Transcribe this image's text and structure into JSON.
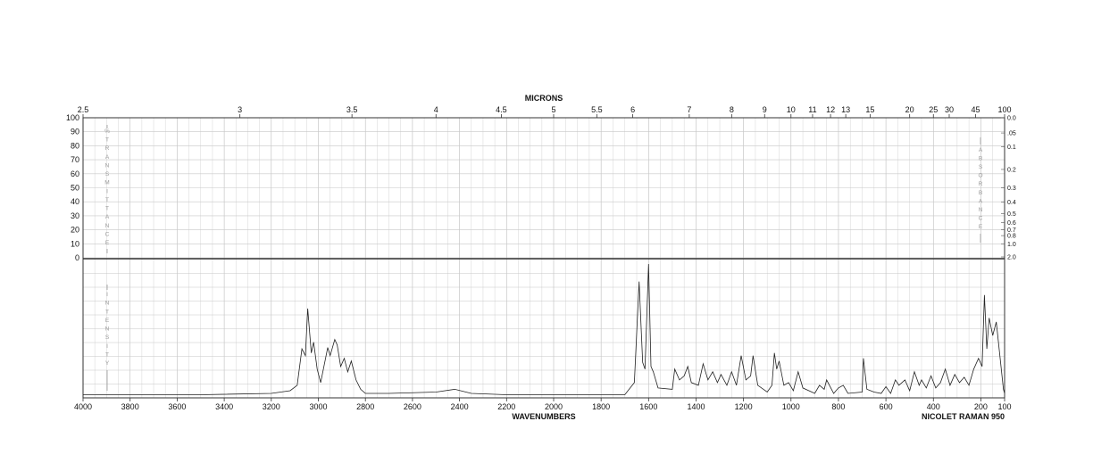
{
  "chart_data": {
    "type": "line",
    "title": "",
    "top_axis_label": "MICRONS",
    "xlabel": "WAVENUMBERS",
    "instrument": "NICOLET RAMAN 950",
    "left_vertical_label_upper": "%TRANSMITTANCE",
    "left_vertical_label_lower": "INTENSITY",
    "right_vertical_label": "ABSORBANCE",
    "xlim": [
      4000,
      100
    ],
    "x_ticks": [
      "4000",
      "3800",
      "3600",
      "3400",
      "3200",
      "3000",
      "2800",
      "2600",
      "2400",
      "2200",
      "2000",
      "1800",
      "1600",
      "1400",
      "1200",
      "1000",
      "800",
      "600",
      "400",
      "200",
      "100"
    ],
    "micron_ticks": [
      "2.5",
      "3",
      "3.5",
      "4",
      "4.5",
      "5",
      "5.5",
      "6",
      "7",
      "8",
      "9",
      "10",
      "11",
      "12",
      "13",
      "15",
      "20",
      "25",
      "30",
      "45",
      "100"
    ],
    "transmittance_ticks": [
      "100",
      "90",
      "80",
      "70",
      "60",
      "50",
      "40",
      "30",
      "20",
      "10",
      "0"
    ],
    "absorbance_ticks": [
      "0.0",
      ".05",
      "0.1",
      "0.2",
      "0.3",
      "0.4",
      "0.5",
      "0.6",
      "0.7",
      "0.8",
      "1.0",
      "2.0"
    ],
    "grid": true,
    "series": [
      {
        "values": [
          [
            4000,
            0.01
          ],
          [
            3500,
            0.01
          ],
          [
            3200,
            0.02
          ],
          [
            3120,
            0.04
          ],
          [
            3090,
            0.08
          ],
          [
            3070,
            0.35
          ],
          [
            3055,
            0.3
          ],
          [
            3045,
            0.65
          ],
          [
            3030,
            0.32
          ],
          [
            3020,
            0.4
          ],
          [
            3005,
            0.2
          ],
          [
            2990,
            0.1
          ],
          [
            2960,
            0.36
          ],
          [
            2950,
            0.3
          ],
          [
            2930,
            0.42
          ],
          [
            2920,
            0.38
          ],
          [
            2905,
            0.22
          ],
          [
            2890,
            0.28
          ],
          [
            2875,
            0.18
          ],
          [
            2860,
            0.26
          ],
          [
            2840,
            0.12
          ],
          [
            2820,
            0.05
          ],
          [
            2800,
            0.02
          ],
          [
            2700,
            0.02
          ],
          [
            2500,
            0.03
          ],
          [
            2420,
            0.05
          ],
          [
            2350,
            0.02
          ],
          [
            2200,
            0.01
          ],
          [
            1900,
            0.01
          ],
          [
            1700,
            0.01
          ],
          [
            1660,
            0.1
          ],
          [
            1640,
            0.85
          ],
          [
            1625,
            0.25
          ],
          [
            1615,
            0.2
          ],
          [
            1600,
            0.98
          ],
          [
            1590,
            0.22
          ],
          [
            1580,
            0.18
          ],
          [
            1560,
            0.06
          ],
          [
            1500,
            0.05
          ],
          [
            1490,
            0.2
          ],
          [
            1470,
            0.12
          ],
          [
            1450,
            0.15
          ],
          [
            1435,
            0.22
          ],
          [
            1420,
            0.1
          ],
          [
            1390,
            0.08
          ],
          [
            1370,
            0.24
          ],
          [
            1350,
            0.12
          ],
          [
            1330,
            0.18
          ],
          [
            1310,
            0.1
          ],
          [
            1295,
            0.16
          ],
          [
            1270,
            0.08
          ],
          [
            1250,
            0.18
          ],
          [
            1230,
            0.08
          ],
          [
            1210,
            0.3
          ],
          [
            1190,
            0.12
          ],
          [
            1170,
            0.15
          ],
          [
            1160,
            0.3
          ],
          [
            1140,
            0.08
          ],
          [
            1100,
            0.03
          ],
          [
            1080,
            0.08
          ],
          [
            1070,
            0.32
          ],
          [
            1060,
            0.2
          ],
          [
            1050,
            0.26
          ],
          [
            1030,
            0.08
          ],
          [
            1010,
            0.1
          ],
          [
            990,
            0.04
          ],
          [
            970,
            0.18
          ],
          [
            950,
            0.06
          ],
          [
            900,
            0.02
          ],
          [
            880,
            0.08
          ],
          [
            860,
            0.05
          ],
          [
            850,
            0.12
          ],
          [
            820,
            0.02
          ],
          [
            800,
            0.06
          ],
          [
            780,
            0.08
          ],
          [
            760,
            0.02
          ],
          [
            700,
            0.03
          ],
          [
            695,
            0.28
          ],
          [
            680,
            0.05
          ],
          [
            650,
            0.03
          ],
          [
            620,
            0.02
          ],
          [
            600,
            0.07
          ],
          [
            580,
            0.02
          ],
          [
            560,
            0.12
          ],
          [
            545,
            0.08
          ],
          [
            520,
            0.12
          ],
          [
            500,
            0.04
          ],
          [
            480,
            0.18
          ],
          [
            460,
            0.08
          ],
          [
            450,
            0.12
          ],
          [
            430,
            0.06
          ],
          [
            410,
            0.15
          ],
          [
            390,
            0.06
          ],
          [
            370,
            0.1
          ],
          [
            350,
            0.2
          ],
          [
            330,
            0.08
          ],
          [
            310,
            0.16
          ],
          [
            290,
            0.1
          ],
          [
            270,
            0.14
          ],
          [
            250,
            0.08
          ],
          [
            230,
            0.2
          ],
          [
            210,
            0.28
          ],
          [
            195,
            0.22
          ],
          [
            185,
            0.75
          ],
          [
            175,
            0.35
          ],
          [
            165,
            0.58
          ],
          [
            150,
            0.45
          ],
          [
            135,
            0.55
          ],
          [
            120,
            0.3
          ],
          [
            105,
            0.05
          ],
          [
            100,
            0.02
          ]
        ]
      }
    ]
  }
}
